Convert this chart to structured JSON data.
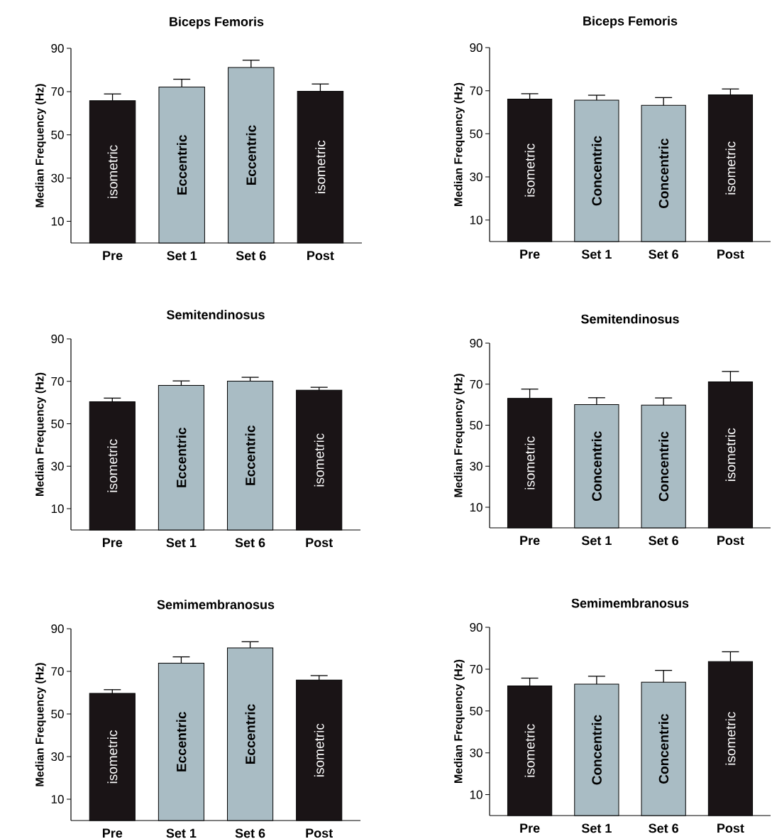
{
  "chart_data": [
    {
      "type": "bar",
      "title": "Biceps Femoris",
      "ylabel": "Median Frequency (Hz)",
      "categories": [
        "Pre",
        "Set 1",
        "Set 6",
        "Post"
      ],
      "ylim": [
        0,
        90
      ],
      "yticks": [
        10,
        30,
        50,
        70,
        90
      ],
      "series": [
        {
          "name": "isometric",
          "color": "#1a1416",
          "values": [
            65.8,
            null,
            null,
            70.1
          ],
          "errors": [
            3.1,
            null,
            null,
            3.4
          ]
        },
        {
          "name": "Eccentric",
          "color": "#a9bcc4",
          "values": [
            null,
            72.1,
            81.1,
            null
          ],
          "errors": [
            null,
            3.6,
            3.4,
            null
          ]
        }
      ]
    },
    {
      "type": "bar",
      "title": "Biceps Femoris",
      "ylabel": "Median Frequency (Hz)",
      "categories": [
        "Pre",
        "Set 1",
        "Set 6",
        "Post"
      ],
      "ylim": [
        0,
        90
      ],
      "yticks": [
        10,
        30,
        50,
        70,
        90
      ],
      "series": [
        {
          "name": "isometric",
          "color": "#1a1416",
          "values": [
            66.1,
            null,
            null,
            68.1
          ],
          "errors": [
            2.5,
            null,
            null,
            2.7
          ]
        },
        {
          "name": "Concentric",
          "color": "#a9bcc4",
          "values": [
            null,
            65.6,
            63.2,
            null
          ],
          "errors": [
            null,
            2.3,
            3.6,
            null
          ]
        }
      ]
    },
    {
      "type": "bar",
      "title": "Semitendinosus",
      "ylabel": "Median Frequency (Hz)",
      "categories": [
        "Pre",
        "Set 1",
        "Set 6",
        "Post"
      ],
      "ylim": [
        0,
        90
      ],
      "yticks": [
        10,
        30,
        50,
        70,
        90
      ],
      "series": [
        {
          "name": "isometric",
          "color": "#1a1416",
          "values": [
            60.4,
            null,
            null,
            65.8
          ],
          "errors": [
            1.7,
            null,
            null,
            1.4
          ]
        },
        {
          "name": "Eccentric",
          "color": "#a9bcc4",
          "values": [
            null,
            68.1,
            70.1,
            null
          ],
          "errors": [
            null,
            2.1,
            1.8,
            null
          ]
        }
      ]
    },
    {
      "type": "bar",
      "title": "Semitendinosus",
      "ylabel": "Median Frequency (Hz)",
      "categories": [
        "Pre",
        "Set 1",
        "Set 6",
        "Post"
      ],
      "ylim": [
        0,
        90
      ],
      "yticks": [
        10,
        30,
        50,
        70,
        90
      ],
      "series": [
        {
          "name": "isometric",
          "color": "#1a1416",
          "values": [
            63.1,
            null,
            null,
            71.1
          ],
          "errors": [
            4.5,
            null,
            null,
            5.1
          ]
        },
        {
          "name": "Concentric",
          "color": "#a9bcc4",
          "values": [
            null,
            60.1,
            59.8,
            null
          ],
          "errors": [
            null,
            3.3,
            3.5,
            null
          ]
        }
      ]
    },
    {
      "type": "bar",
      "title": "Semimembranosus",
      "ylabel": "Median Frequency (Hz)",
      "categories": [
        "Pre",
        "Set 1",
        "Set 6",
        "Post"
      ],
      "ylim": [
        0,
        90
      ],
      "yticks": [
        10,
        30,
        50,
        70,
        90
      ],
      "series": [
        {
          "name": "isometric",
          "color": "#1a1416",
          "values": [
            59.7,
            null,
            null,
            65.9
          ],
          "errors": [
            1.7,
            null,
            null,
            2.1
          ]
        },
        {
          "name": "Eccentric",
          "color": "#a9bcc4",
          "values": [
            null,
            73.8,
            81.0,
            null
          ],
          "errors": [
            null,
            3.0,
            2.9,
            null
          ]
        }
      ]
    },
    {
      "type": "bar",
      "title": "Semimembranosus",
      "ylabel": "Median Frequency (Hz)",
      "categories": [
        "Pre",
        "Set 1",
        "Set 6",
        "Post"
      ],
      "ylim": [
        0,
        90
      ],
      "yticks": [
        10,
        30,
        50,
        70,
        90
      ],
      "series": [
        {
          "name": "isometric",
          "color": "#1a1416",
          "values": [
            62.0,
            null,
            null,
            73.6
          ],
          "errors": [
            3.7,
            null,
            null,
            4.7
          ]
        },
        {
          "name": "Concentric",
          "color": "#a9bcc4",
          "values": [
            null,
            62.8,
            63.8,
            null
          ],
          "errors": [
            null,
            3.8,
            5.6,
            null
          ]
        }
      ]
    }
  ]
}
